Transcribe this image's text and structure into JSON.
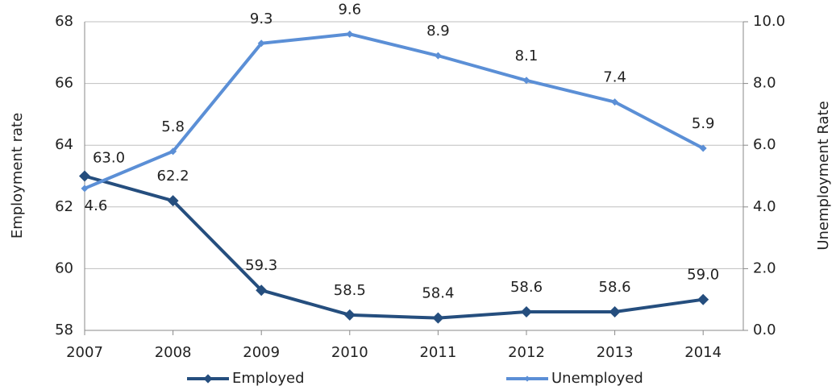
{
  "chart_data": {
    "type": "line",
    "categories": [
      "2007",
      "2008",
      "2009",
      "2010",
      "2011",
      "2012",
      "2013",
      "2014"
    ],
    "series": [
      {
        "name": "Employed",
        "color": "#254e7e",
        "values": [
          63.0,
          62.2,
          59.3,
          58.5,
          58.4,
          58.6,
          58.6,
          59.0
        ],
        "value_labels": [
          "63.0",
          "62.2",
          "59.3",
          "58.5",
          "58.4",
          "58.6",
          "58.6",
          "59.0"
        ]
      },
      {
        "name": "Unemployed",
        "color": "#5b8fd6",
        "axis": "y2",
        "values": [
          4.6,
          5.8,
          9.3,
          9.6,
          8.9,
          8.1,
          7.4,
          5.9
        ]
      }
    ],
    "ylabel": "Employment rate",
    "y2label": "Unemployment Rate",
    "ylim": [
      58,
      68
    ],
    "yticks": [
      58,
      60,
      62,
      64,
      66,
      68
    ],
    "y2lim": [
      0,
      10
    ],
    "y2ticks": [
      {
        "value": 0,
        "label": "0.0"
      },
      {
        "value": 2,
        "label": "2.0"
      },
      {
        "value": 4,
        "label": "4.0"
      },
      {
        "value": 6,
        "label": "6.0"
      },
      {
        "value": 8,
        "label": "8.0"
      },
      {
        "value": 10,
        "label": "10.0"
      }
    ],
    "grid": true,
    "legend": "bottom"
  }
}
